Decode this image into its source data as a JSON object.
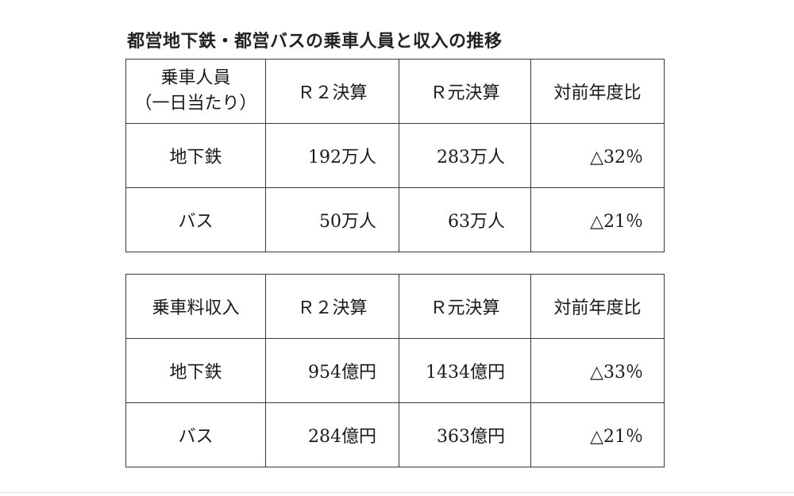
{
  "title": "都営地下鉄・都営バスの乗車人員と収入の推移",
  "riders_table": {
    "header": {
      "label_line1": "乗車人員",
      "label_line2": "（一日当たり）",
      "col_r2": "Ｒ２決算",
      "col_r1": "Ｒ元決算",
      "col_ratio": "対前年度比"
    },
    "rows": [
      {
        "label": "地下鉄",
        "r2": "192万人",
        "r1": "283万人",
        "ratio": "△32％"
      },
      {
        "label": "バス",
        "r2": "50万人",
        "r1": "63万人",
        "ratio": "△21％"
      }
    ]
  },
  "revenue_table": {
    "header": {
      "label": "乗車料収入",
      "col_r2": "Ｒ２決算",
      "col_r1": "Ｒ元決算",
      "col_ratio": "対前年度比"
    },
    "rows": [
      {
        "label": "地下鉄",
        "r2": "954億円",
        "r1": "1434億円",
        "ratio": "△33％"
      },
      {
        "label": "バス",
        "r2": "284億円",
        "r1": "363億円",
        "ratio": "△21％"
      }
    ]
  }
}
